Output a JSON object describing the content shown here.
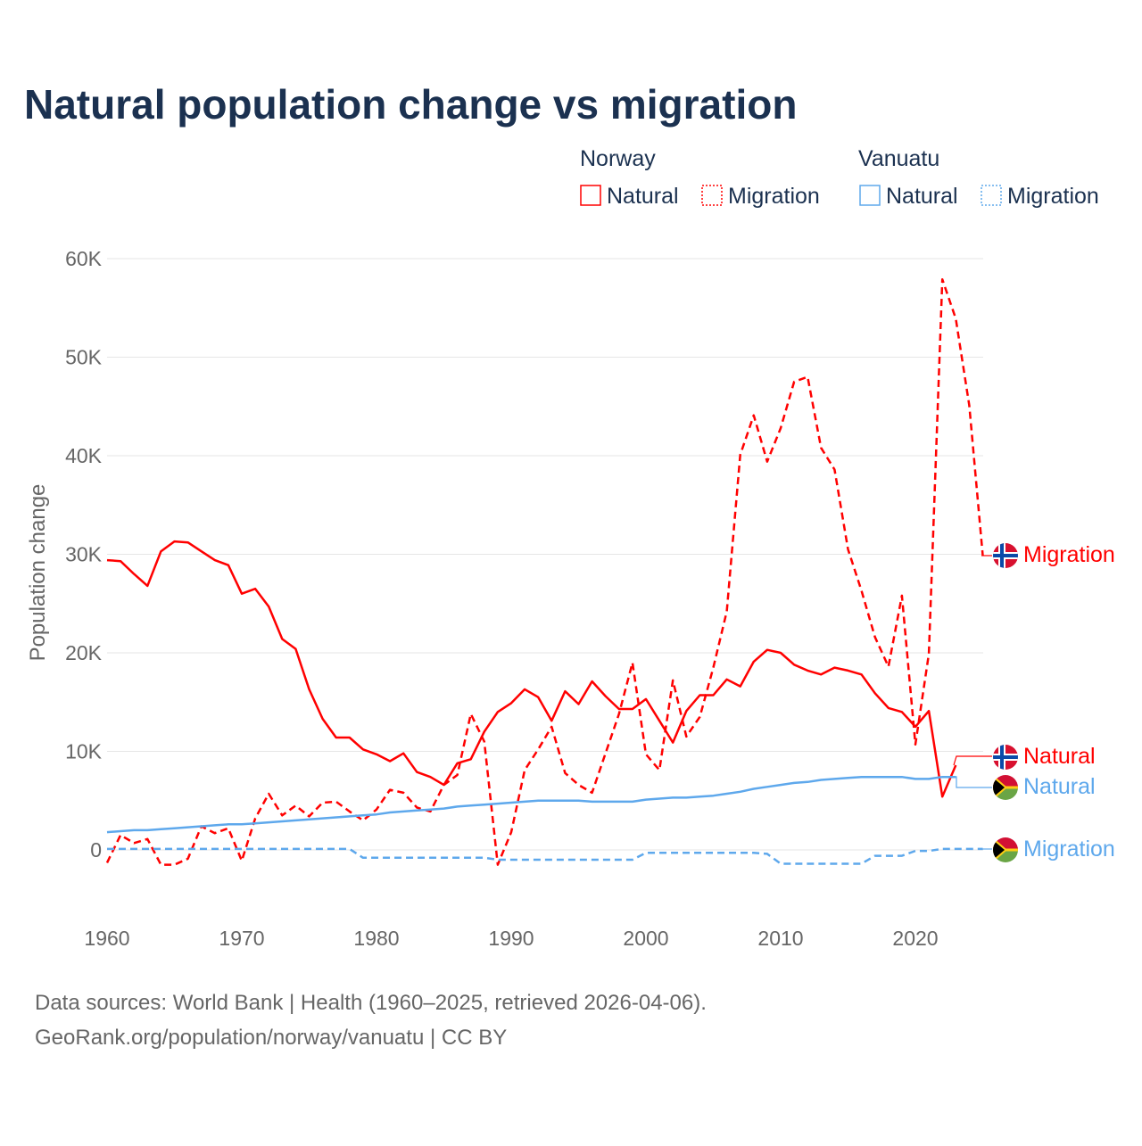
{
  "chart_data": {
    "type": "line",
    "title": "Natural population change vs migration",
    "xlabel": "",
    "ylabel": "Population change",
    "unit": "thousands",
    "xlim": [
      1960,
      2025
    ],
    "ylim": [
      -5,
      60
    ],
    "x_ticks": [
      "1960",
      "1970",
      "1980",
      "1990",
      "2000",
      "2010",
      "2020"
    ],
    "y_ticks": [
      {
        "value": 0,
        "label": "0"
      },
      {
        "value": 10,
        "label": "10K"
      },
      {
        "value": 20,
        "label": "20K"
      },
      {
        "value": 30,
        "label": "30K"
      },
      {
        "value": 40,
        "label": "40K"
      },
      {
        "value": 50,
        "label": "50K"
      },
      {
        "value": 60,
        "label": "60K"
      }
    ],
    "grid": true,
    "legend_placement": "top-right",
    "legend": {
      "groups": [
        {
          "name": "Norway",
          "items": [
            "Natural",
            "Migration"
          ]
        },
        {
          "name": "Vanuatu",
          "items": [
            "Natural",
            "Migration"
          ]
        }
      ]
    },
    "series": [
      {
        "name": "Norway Natural",
        "country": "Norway",
        "kind": "Natural",
        "color": "#ff0000",
        "dash": "",
        "start": 1960,
        "values": [
          29.4,
          29.3,
          28.0,
          26.8,
          30.3,
          31.3,
          31.2,
          30.3,
          29.4,
          28.9,
          26.0,
          26.5,
          24.7,
          21.4,
          20.4,
          16.3,
          13.3,
          11.4,
          11.4,
          10.2,
          9.7,
          9.0,
          9.8,
          7.9,
          7.4,
          6.6,
          8.8,
          9.2,
          12.0,
          14.0,
          14.9,
          16.3,
          15.5,
          13.1,
          16.1,
          14.8,
          17.1,
          15.6,
          14.3,
          14.3,
          15.3,
          13.1,
          10.9,
          14.1,
          15.7,
          15.7,
          17.3,
          16.6,
          19.1,
          20.3,
          20.0,
          18.8,
          18.2,
          17.8,
          18.5,
          18.2,
          17.8,
          15.9,
          14.4,
          14.0,
          12.5,
          14.1,
          5.4,
          8.6
        ],
        "end_label": "Natural"
      },
      {
        "name": "Norway Migration",
        "country": "Norway",
        "kind": "Migration",
        "color": "#ff0000",
        "dash": "8,5",
        "start": 1960,
        "values": [
          -1.3,
          1.5,
          0.7,
          1.1,
          -1.5,
          -1.5,
          -0.9,
          2.4,
          1.7,
          2.2,
          -1.1,
          3.2,
          5.7,
          3.5,
          4.5,
          3.4,
          4.8,
          4.9,
          3.9,
          3.0,
          4.1,
          6.1,
          5.8,
          4.3,
          3.9,
          6.6,
          7.6,
          13.8,
          11.0,
          -1.5,
          1.8,
          8.1,
          10.2,
          12.5,
          7.8,
          6.6,
          5.8,
          9.8,
          13.8,
          19.0,
          9.7,
          8.1,
          17.2,
          11.5,
          13.5,
          18.5,
          24.2,
          40.1,
          44.1,
          39.4,
          42.8,
          47.5,
          48.0,
          40.8,
          38.6,
          30.5,
          26.3,
          21.6,
          18.6,
          25.8,
          10.7,
          19.9,
          57.9,
          53.9,
          45.1,
          29.9
        ],
        "end_label": "Migration"
      },
      {
        "name": "Vanuatu Natural",
        "country": "Vanuatu",
        "kind": "Natural",
        "color": "#5ea8ec",
        "dash": "",
        "start": 1960,
        "values": [
          1.8,
          1.9,
          2.0,
          2.0,
          2.1,
          2.2,
          2.3,
          2.4,
          2.5,
          2.6,
          2.6,
          2.7,
          2.8,
          2.9,
          3.0,
          3.1,
          3.2,
          3.3,
          3.4,
          3.5,
          3.6,
          3.8,
          3.9,
          4.0,
          4.1,
          4.2,
          4.4,
          4.5,
          4.6,
          4.7,
          4.8,
          4.9,
          5.0,
          5.0,
          5.0,
          5.0,
          4.9,
          4.9,
          4.9,
          4.9,
          5.1,
          5.2,
          5.3,
          5.3,
          5.4,
          5.5,
          5.7,
          5.9,
          6.2,
          6.4,
          6.6,
          6.8,
          6.9,
          7.1,
          7.2,
          7.3,
          7.4,
          7.4,
          7.4,
          7.4,
          7.2,
          7.2,
          7.4,
          7.4
        ],
        "end_label": "Natural"
      },
      {
        "name": "Vanuatu Migration",
        "country": "Vanuatu",
        "kind": "Migration",
        "color": "#5ea8ec",
        "dash": "8,5",
        "start": 1960,
        "values": [
          0.1,
          0.1,
          0.1,
          0.1,
          0.1,
          0.1,
          0.1,
          0.1,
          0.1,
          0.1,
          0.1,
          0.1,
          0.1,
          0.1,
          0.1,
          0.1,
          0.1,
          0.1,
          0.1,
          -0.8,
          -0.8,
          -0.8,
          -0.8,
          -0.8,
          -0.8,
          -0.8,
          -0.8,
          -0.8,
          -0.8,
          -1.0,
          -1.0,
          -1.0,
          -1.0,
          -1.0,
          -1.0,
          -1.0,
          -1.0,
          -1.0,
          -1.0,
          -1.0,
          -0.3,
          -0.3,
          -0.3,
          -0.3,
          -0.3,
          -0.3,
          -0.3,
          -0.3,
          -0.3,
          -0.4,
          -1.4,
          -1.4,
          -1.4,
          -1.4,
          -1.4,
          -1.4,
          -1.4,
          -0.6,
          -0.6,
          -0.6,
          -0.1,
          -0.1,
          0.1,
          0.1,
          0.1,
          0.1
        ],
        "end_label": "Migration"
      }
    ],
    "source_lines": [
      "Data sources: World Bank | Health (1960–2025, retrieved 2026-04-06).",
      "GeoRank.org/population/norway/vanuatu | CC BY"
    ]
  }
}
